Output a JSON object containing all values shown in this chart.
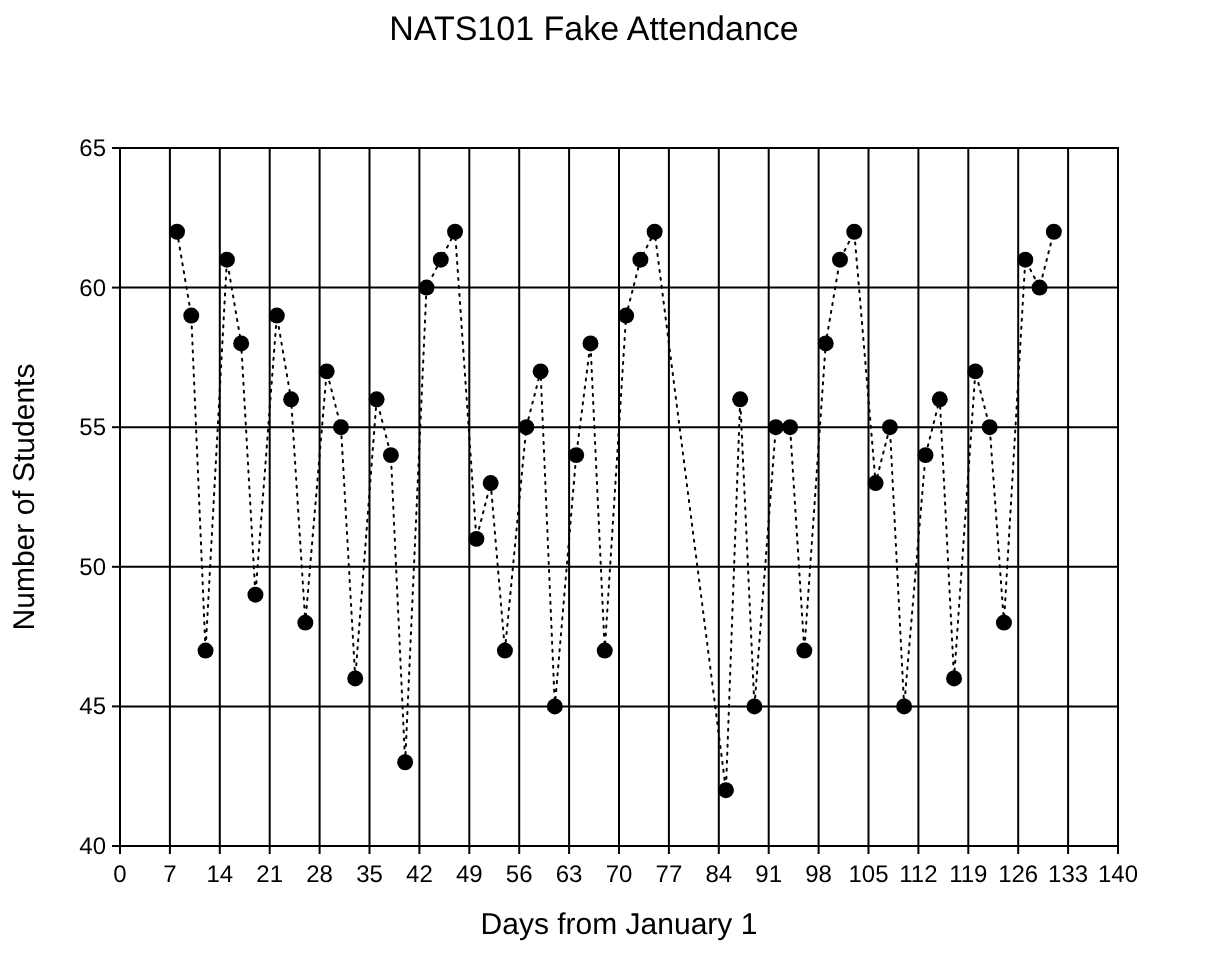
{
  "chart_data": {
    "type": "line",
    "title": "NATS101 Fake Attendance",
    "xlabel": "Days from January 1",
    "ylabel": "Number of Students",
    "x": [
      8,
      10,
      12,
      15,
      17,
      19,
      22,
      24,
      26,
      29,
      31,
      33,
      36,
      38,
      40,
      43,
      45,
      47,
      50,
      52,
      54,
      57,
      59,
      61,
      64,
      66,
      68,
      71,
      73,
      75,
      85,
      87,
      89,
      92,
      94,
      96,
      99,
      101,
      103,
      106,
      108,
      110,
      113,
      115,
      117,
      120,
      122,
      124,
      127,
      129,
      131
    ],
    "series": [
      {
        "color": "#000000",
        "values": [
          62,
          59,
          47,
          61,
          58,
          49,
          59,
          56,
          48,
          57,
          55,
          46,
          56,
          54,
          43,
          60,
          61,
          62,
          51,
          53,
          47,
          55,
          57,
          45,
          54,
          58,
          47,
          59,
          61,
          62,
          42,
          56,
          45,
          55,
          55,
          47,
          58,
          61,
          62,
          53,
          55,
          45,
          54,
          56,
          46,
          57,
          55,
          48,
          61,
          60,
          62
        ]
      }
    ],
    "xlim": [
      0,
      140
    ],
    "xticks": [
      0,
      7,
      14,
      21,
      28,
      35,
      42,
      49,
      56,
      63,
      70,
      77,
      84,
      91,
      98,
      105,
      112,
      119,
      126,
      133,
      140
    ],
    "ylim": [
      40,
      65
    ],
    "yticks": [
      40,
      45,
      50,
      55,
      60,
      65
    ],
    "grid": true,
    "marker": "circle",
    "line_style": "dotted"
  }
}
